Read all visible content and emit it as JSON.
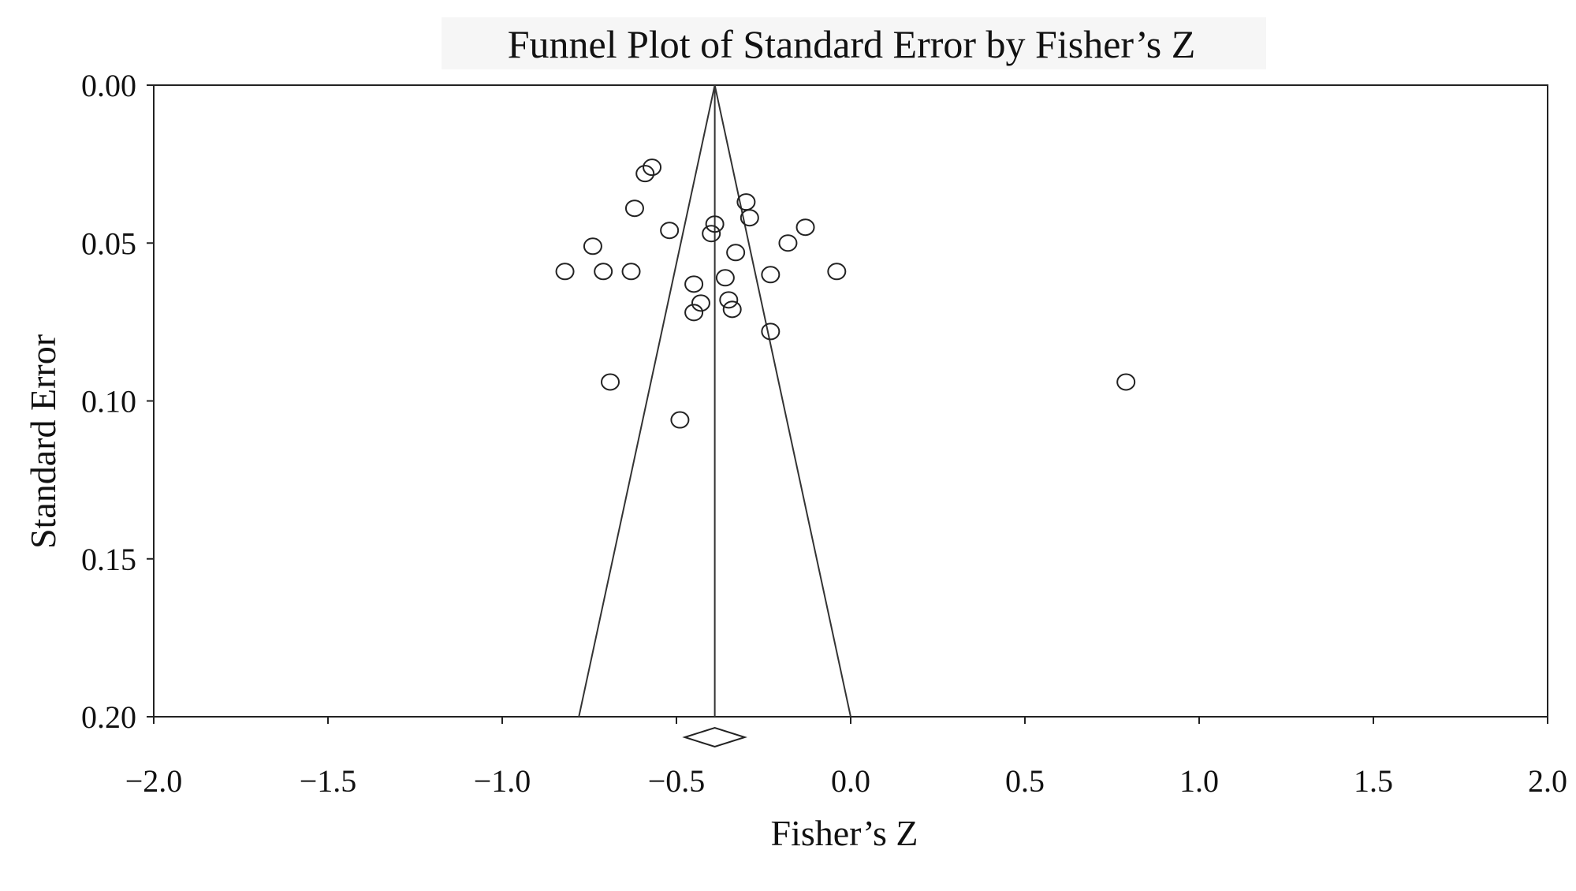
{
  "chart_data": {
    "type": "scatter",
    "title": "Funnel Plot of Standard Error by Fisher’s Z",
    "xlabel": "Fisher’s Z",
    "ylabel": "Standard Error",
    "xlim": [
      -2.0,
      2.0
    ],
    "ylim": [
      0.0,
      0.2
    ],
    "y_inverted": true,
    "grid": false,
    "x_ticks": [
      "-2.0",
      "-1.5",
      "-1.0",
      "-0.5",
      "0.0",
      "0.5",
      "1.0",
      "1.5",
      "2.0"
    ],
    "y_ticks": [
      "0.00",
      "0.05",
      "0.10",
      "0.15",
      "0.20"
    ],
    "pooled_estimate": -0.39,
    "funnel_bounds": [
      -0.78,
      0.0
    ],
    "points": [
      {
        "x": -0.59,
        "y": 0.028
      },
      {
        "x": -0.57,
        "y": 0.026
      },
      {
        "x": -0.3,
        "y": 0.037
      },
      {
        "x": -0.62,
        "y": 0.039
      },
      {
        "x": -0.29,
        "y": 0.042
      },
      {
        "x": -0.39,
        "y": 0.044
      },
      {
        "x": -0.13,
        "y": 0.045
      },
      {
        "x": -0.52,
        "y": 0.046
      },
      {
        "x": -0.4,
        "y": 0.047
      },
      {
        "x": -0.18,
        "y": 0.05
      },
      {
        "x": -0.74,
        "y": 0.051
      },
      {
        "x": -0.33,
        "y": 0.053
      },
      {
        "x": -0.82,
        "y": 0.059
      },
      {
        "x": -0.71,
        "y": 0.059
      },
      {
        "x": -0.63,
        "y": 0.059
      },
      {
        "x": -0.04,
        "y": 0.059
      },
      {
        "x": -0.23,
        "y": 0.06
      },
      {
        "x": -0.36,
        "y": 0.061
      },
      {
        "x": -0.45,
        "y": 0.063
      },
      {
        "x": -0.43,
        "y": 0.069
      },
      {
        "x": -0.35,
        "y": 0.068
      },
      {
        "x": -0.34,
        "y": 0.071
      },
      {
        "x": -0.45,
        "y": 0.072
      },
      {
        "x": -0.23,
        "y": 0.078
      },
      {
        "x": -0.69,
        "y": 0.094
      },
      {
        "x": 0.79,
        "y": 0.094
      },
      {
        "x": -0.49,
        "y": 0.106
      }
    ]
  }
}
